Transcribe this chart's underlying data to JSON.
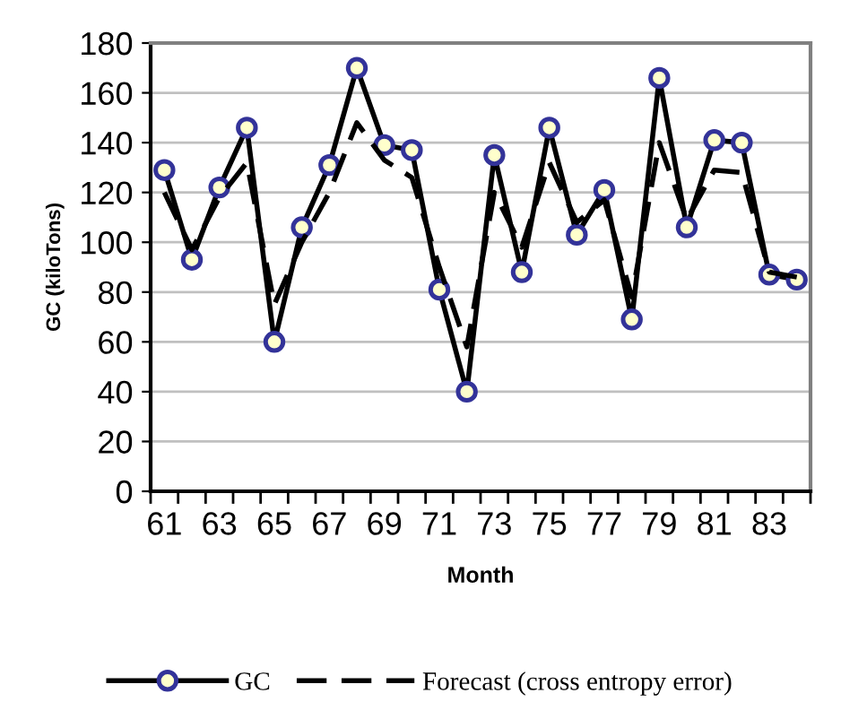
{
  "chart_data": {
    "type": "line",
    "xlabel": "Month",
    "ylabel": "GC (kiloTons)",
    "categories": [
      "61",
      null,
      "63",
      null,
      "65",
      null,
      "67",
      null,
      "69",
      null,
      "71",
      null,
      "73",
      null,
      "75",
      null,
      "77",
      null,
      "79",
      null,
      "81",
      null,
      "83",
      null
    ],
    "series": [
      {
        "name": "GC",
        "color": "#000000",
        "marker": "circle",
        "line_style": "solid",
        "values": [
          129,
          93,
          122,
          146,
          60,
          106,
          131,
          170,
          139,
          137,
          81,
          40,
          135,
          88,
          146,
          103,
          121,
          69,
          166,
          106,
          141,
          140,
          87,
          85
        ]
      },
      {
        "name": "Forecast (cross entropy error)",
        "color": "#000000",
        "marker": "none",
        "line_style": "dashed",
        "values": [
          120,
          97,
          118,
          132,
          75,
          100,
          120,
          148,
          133,
          126,
          90,
          58,
          120,
          98,
          132,
          108,
          117,
          78,
          140,
          109,
          129,
          128,
          88,
          86
        ]
      }
    ],
    "ylim": [
      0,
      180
    ],
    "yticks": [
      0,
      20,
      40,
      60,
      80,
      100,
      120,
      140,
      160,
      180
    ],
    "grid": "y",
    "legend": "bottom"
  }
}
